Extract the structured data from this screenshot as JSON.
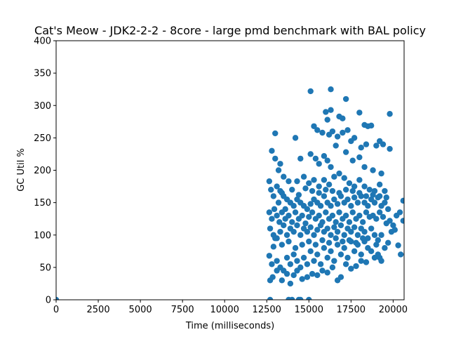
{
  "chart_data": {
    "type": "scatter",
    "title": "Cat's Meow - JDK2-2-2 - 8core -  large pmd benchmark with BAL policy",
    "xlabel": "Time (milliseconds)",
    "ylabel": "GC Util %",
    "xlim": [
      0,
      20650
    ],
    "ylim": [
      0,
      400
    ],
    "xticks": [
      0,
      2500,
      5000,
      7500,
      10000,
      12500,
      15000,
      17500,
      20000
    ],
    "xtick_labels": [
      "0",
      "2500",
      "5000",
      "7500",
      "10000",
      "12500",
      "15000",
      "17500",
      "20000"
    ],
    "yticks": [
      0,
      50,
      100,
      150,
      200,
      250,
      300,
      350,
      400
    ],
    "ytick_labels": [
      "0",
      "50",
      "100",
      "150",
      "200",
      "250",
      "300",
      "350",
      "400"
    ],
    "grid": false,
    "marker_color": "#1f77b4",
    "points": [
      [
        0,
        0
      ],
      [
        12700,
        0
      ],
      [
        13800,
        0
      ],
      [
        14000,
        0
      ],
      [
        14400,
        0
      ],
      [
        14500,
        0
      ],
      [
        15000,
        0
      ],
      [
        15100,
        322
      ],
      [
        16300,
        325
      ],
      [
        17200,
        310
      ],
      [
        19800,
        287
      ],
      [
        16000,
        290
      ],
      [
        16300,
        293
      ],
      [
        16100,
        278
      ],
      [
        16800,
        283
      ],
      [
        17000,
        280
      ],
      [
        18000,
        289
      ],
      [
        19200,
        245
      ],
      [
        19400,
        240
      ],
      [
        18300,
        270
      ],
      [
        18500,
        268
      ],
      [
        18700,
        269
      ],
      [
        13000,
        257
      ],
      [
        14200,
        250
      ],
      [
        15300,
        268
      ],
      [
        15500,
        262
      ],
      [
        15800,
        258
      ],
      [
        16200,
        255
      ],
      [
        16400,
        260
      ],
      [
        16700,
        252
      ],
      [
        17000,
        258
      ],
      [
        17300,
        262
      ],
      [
        17500,
        245
      ],
      [
        17700,
        250
      ],
      [
        18100,
        235
      ],
      [
        18400,
        240
      ],
      [
        19000,
        238
      ],
      [
        19800,
        233
      ],
      [
        12800,
        230
      ],
      [
        13300,
        210
      ],
      [
        14500,
        218
      ],
      [
        15100,
        225
      ],
      [
        15400,
        218
      ],
      [
        15600,
        210
      ],
      [
        15900,
        222
      ],
      [
        16100,
        215
      ],
      [
        16300,
        205
      ],
      [
        16600,
        238
      ],
      [
        17200,
        228
      ],
      [
        17600,
        215
      ],
      [
        18000,
        220
      ],
      [
        18300,
        205
      ],
      [
        18800,
        200
      ],
      [
        19300,
        195
      ],
      [
        13000,
        218
      ],
      [
        13200,
        200
      ],
      [
        13500,
        190
      ],
      [
        13800,
        183
      ],
      [
        14300,
        183
      ],
      [
        14700,
        190
      ],
      [
        15000,
        180
      ],
      [
        15300,
        185
      ],
      [
        15600,
        175
      ],
      [
        15900,
        185
      ],
      [
        16200,
        178
      ],
      [
        16500,
        190
      ],
      [
        16800,
        195
      ],
      [
        17100,
        188
      ],
      [
        17400,
        180
      ],
      [
        17700,
        175
      ],
      [
        18000,
        185
      ],
      [
        18300,
        175
      ],
      [
        18600,
        170
      ],
      [
        18900,
        168
      ],
      [
        19200,
        178
      ],
      [
        19500,
        168
      ],
      [
        12650,
        183
      ],
      [
        12750,
        170
      ],
      [
        12900,
        160
      ],
      [
        13100,
        175
      ],
      [
        13300,
        168
      ],
      [
        13500,
        160
      ],
      [
        13700,
        155
      ],
      [
        13900,
        150
      ],
      [
        14100,
        145
      ],
      [
        14300,
        155
      ],
      [
        14500,
        150
      ],
      [
        14700,
        145
      ],
      [
        14900,
        140
      ],
      [
        15100,
        148
      ],
      [
        15300,
        155
      ],
      [
        15500,
        150
      ],
      [
        15700,
        145
      ],
      [
        15900,
        160
      ],
      [
        16100,
        150
      ],
      [
        16300,
        145
      ],
      [
        16500,
        155
      ],
      [
        16700,
        148
      ],
      [
        16900,
        160
      ],
      [
        17100,
        150
      ],
      [
        17300,
        155
      ],
      [
        17500,
        145
      ],
      [
        17700,
        158
      ],
      [
        17900,
        150
      ],
      [
        18100,
        160
      ],
      [
        18300,
        150
      ],
      [
        18500,
        145
      ],
      [
        18700,
        155
      ],
      [
        18900,
        150
      ],
      [
        19100,
        158
      ],
      [
        19300,
        145
      ],
      [
        19500,
        150
      ],
      [
        19700,
        140
      ],
      [
        20600,
        153
      ],
      [
        12650,
        135
      ],
      [
        12800,
        125
      ],
      [
        12950,
        140
      ],
      [
        13100,
        130
      ],
      [
        13250,
        120
      ],
      [
        13400,
        135
      ],
      [
        13600,
        125
      ],
      [
        13800,
        130
      ],
      [
        14000,
        120
      ],
      [
        14200,
        135
      ],
      [
        14400,
        125
      ],
      [
        14600,
        130
      ],
      [
        14800,
        118
      ],
      [
        15000,
        128
      ],
      [
        15200,
        135
      ],
      [
        15400,
        125
      ],
      [
        15600,
        130
      ],
      [
        15800,
        120
      ],
      [
        16000,
        135
      ],
      [
        16200,
        125
      ],
      [
        16400,
        130
      ],
      [
        16600,
        120
      ],
      [
        16800,
        135
      ],
      [
        17000,
        125
      ],
      [
        17200,
        130
      ],
      [
        17400,
        120
      ],
      [
        17600,
        135
      ],
      [
        17800,
        125
      ],
      [
        18000,
        130
      ],
      [
        18200,
        120
      ],
      [
        18400,
        135
      ],
      [
        18600,
        128
      ],
      [
        18800,
        130
      ],
      [
        19000,
        125
      ],
      [
        19200,
        135
      ],
      [
        19400,
        128
      ],
      [
        19600,
        118
      ],
      [
        19800,
        122
      ],
      [
        20000,
        115
      ],
      [
        20200,
        130
      ],
      [
        20400,
        135
      ],
      [
        20600,
        122
      ],
      [
        12700,
        110
      ],
      [
        12900,
        100
      ],
      [
        13100,
        95
      ],
      [
        13300,
        105
      ],
      [
        13500,
        115
      ],
      [
        13700,
        100
      ],
      [
        13900,
        110
      ],
      [
        14100,
        105
      ],
      [
        14300,
        115
      ],
      [
        14500,
        100
      ],
      [
        14700,
        110
      ],
      [
        14900,
        105
      ],
      [
        15100,
        112
      ],
      [
        15300,
        100
      ],
      [
        15500,
        108
      ],
      [
        15700,
        115
      ],
      [
        15900,
        105
      ],
      [
        16100,
        110
      ],
      [
        16300,
        100
      ],
      [
        16500,
        112
      ],
      [
        16700,
        105
      ],
      [
        16900,
        115
      ],
      [
        17100,
        100
      ],
      [
        17300,
        110
      ],
      [
        17500,
        105
      ],
      [
        17700,
        112
      ],
      [
        17900,
        100
      ],
      [
        18100,
        110
      ],
      [
        18300,
        105
      ],
      [
        18500,
        95
      ],
      [
        18700,
        110
      ],
      [
        18900,
        100
      ],
      [
        19100,
        92
      ],
      [
        19300,
        100
      ],
      [
        19500,
        80
      ],
      [
        19700,
        88
      ],
      [
        19900,
        105
      ],
      [
        20100,
        108
      ],
      [
        20300,
        84
      ],
      [
        20450,
        70
      ],
      [
        12650,
        68
      ],
      [
        12800,
        55
      ],
      [
        12900,
        82
      ],
      [
        13100,
        60
      ],
      [
        13300,
        50
      ],
      [
        13500,
        45
      ],
      [
        13700,
        65
      ],
      [
        13900,
        55
      ],
      [
        14100,
        70
      ],
      [
        14300,
        60
      ],
      [
        14500,
        50
      ],
      [
        14700,
        65
      ],
      [
        14900,
        55
      ],
      [
        15100,
        75
      ],
      [
        15300,
        60
      ],
      [
        15500,
        70
      ],
      [
        15700,
        55
      ],
      [
        15900,
        80
      ],
      [
        16100,
        65
      ],
      [
        16300,
        75
      ],
      [
        16500,
        60
      ],
      [
        16700,
        85
      ],
      [
        16900,
        70
      ],
      [
        17100,
        80
      ],
      [
        17300,
        65
      ],
      [
        17500,
        90
      ],
      [
        17700,
        75
      ],
      [
        17900,
        85
      ],
      [
        18100,
        70
      ],
      [
        18300,
        90
      ],
      [
        18500,
        80
      ],
      [
        18700,
        75
      ],
      [
        18900,
        65
      ],
      [
        19100,
        70
      ],
      [
        19300,
        60
      ],
      [
        12700,
        30
      ],
      [
        12850,
        35
      ],
      [
        13100,
        45
      ],
      [
        13400,
        30
      ],
      [
        13700,
        40
      ],
      [
        13900,
        25
      ],
      [
        14100,
        38
      ],
      [
        14300,
        45
      ],
      [
        14600,
        32
      ],
      [
        14900,
        35
      ],
      [
        15200,
        40
      ],
      [
        15500,
        38
      ],
      [
        15800,
        45
      ],
      [
        16100,
        42
      ],
      [
        16400,
        50
      ],
      [
        16700,
        30
      ],
      [
        16900,
        35
      ],
      [
        17200,
        55
      ],
      [
        17500,
        48
      ],
      [
        17800,
        52
      ],
      [
        18100,
        60
      ],
      [
        18400,
        58
      ],
      [
        19000,
        85
      ],
      [
        19200,
        65
      ],
      [
        13200,
        150
      ],
      [
        13400,
        165
      ],
      [
        13600,
        140
      ],
      [
        14000,
        170
      ],
      [
        14400,
        162
      ],
      [
        14800,
        172
      ],
      [
        15200,
        168
      ],
      [
        15600,
        165
      ],
      [
        16000,
        170
      ],
      [
        16400,
        168
      ],
      [
        16800,
        165
      ],
      [
        17200,
        170
      ],
      [
        17600,
        168
      ],
      [
        18000,
        165
      ],
      [
        18400,
        160
      ],
      [
        18800,
        162
      ],
      [
        19200,
        160
      ],
      [
        19600,
        158
      ],
      [
        15000,
        90
      ],
      [
        15400,
        85
      ],
      [
        15800,
        92
      ],
      [
        16200,
        88
      ],
      [
        16600,
        95
      ],
      [
        17000,
        90
      ],
      [
        17400,
        92
      ],
      [
        17800,
        88
      ],
      [
        18200,
        95
      ],
      [
        14600,
        85
      ],
      [
        14200,
        80
      ],
      [
        13800,
        90
      ],
      [
        13400,
        85
      ],
      [
        13000,
        95
      ]
    ]
  }
}
